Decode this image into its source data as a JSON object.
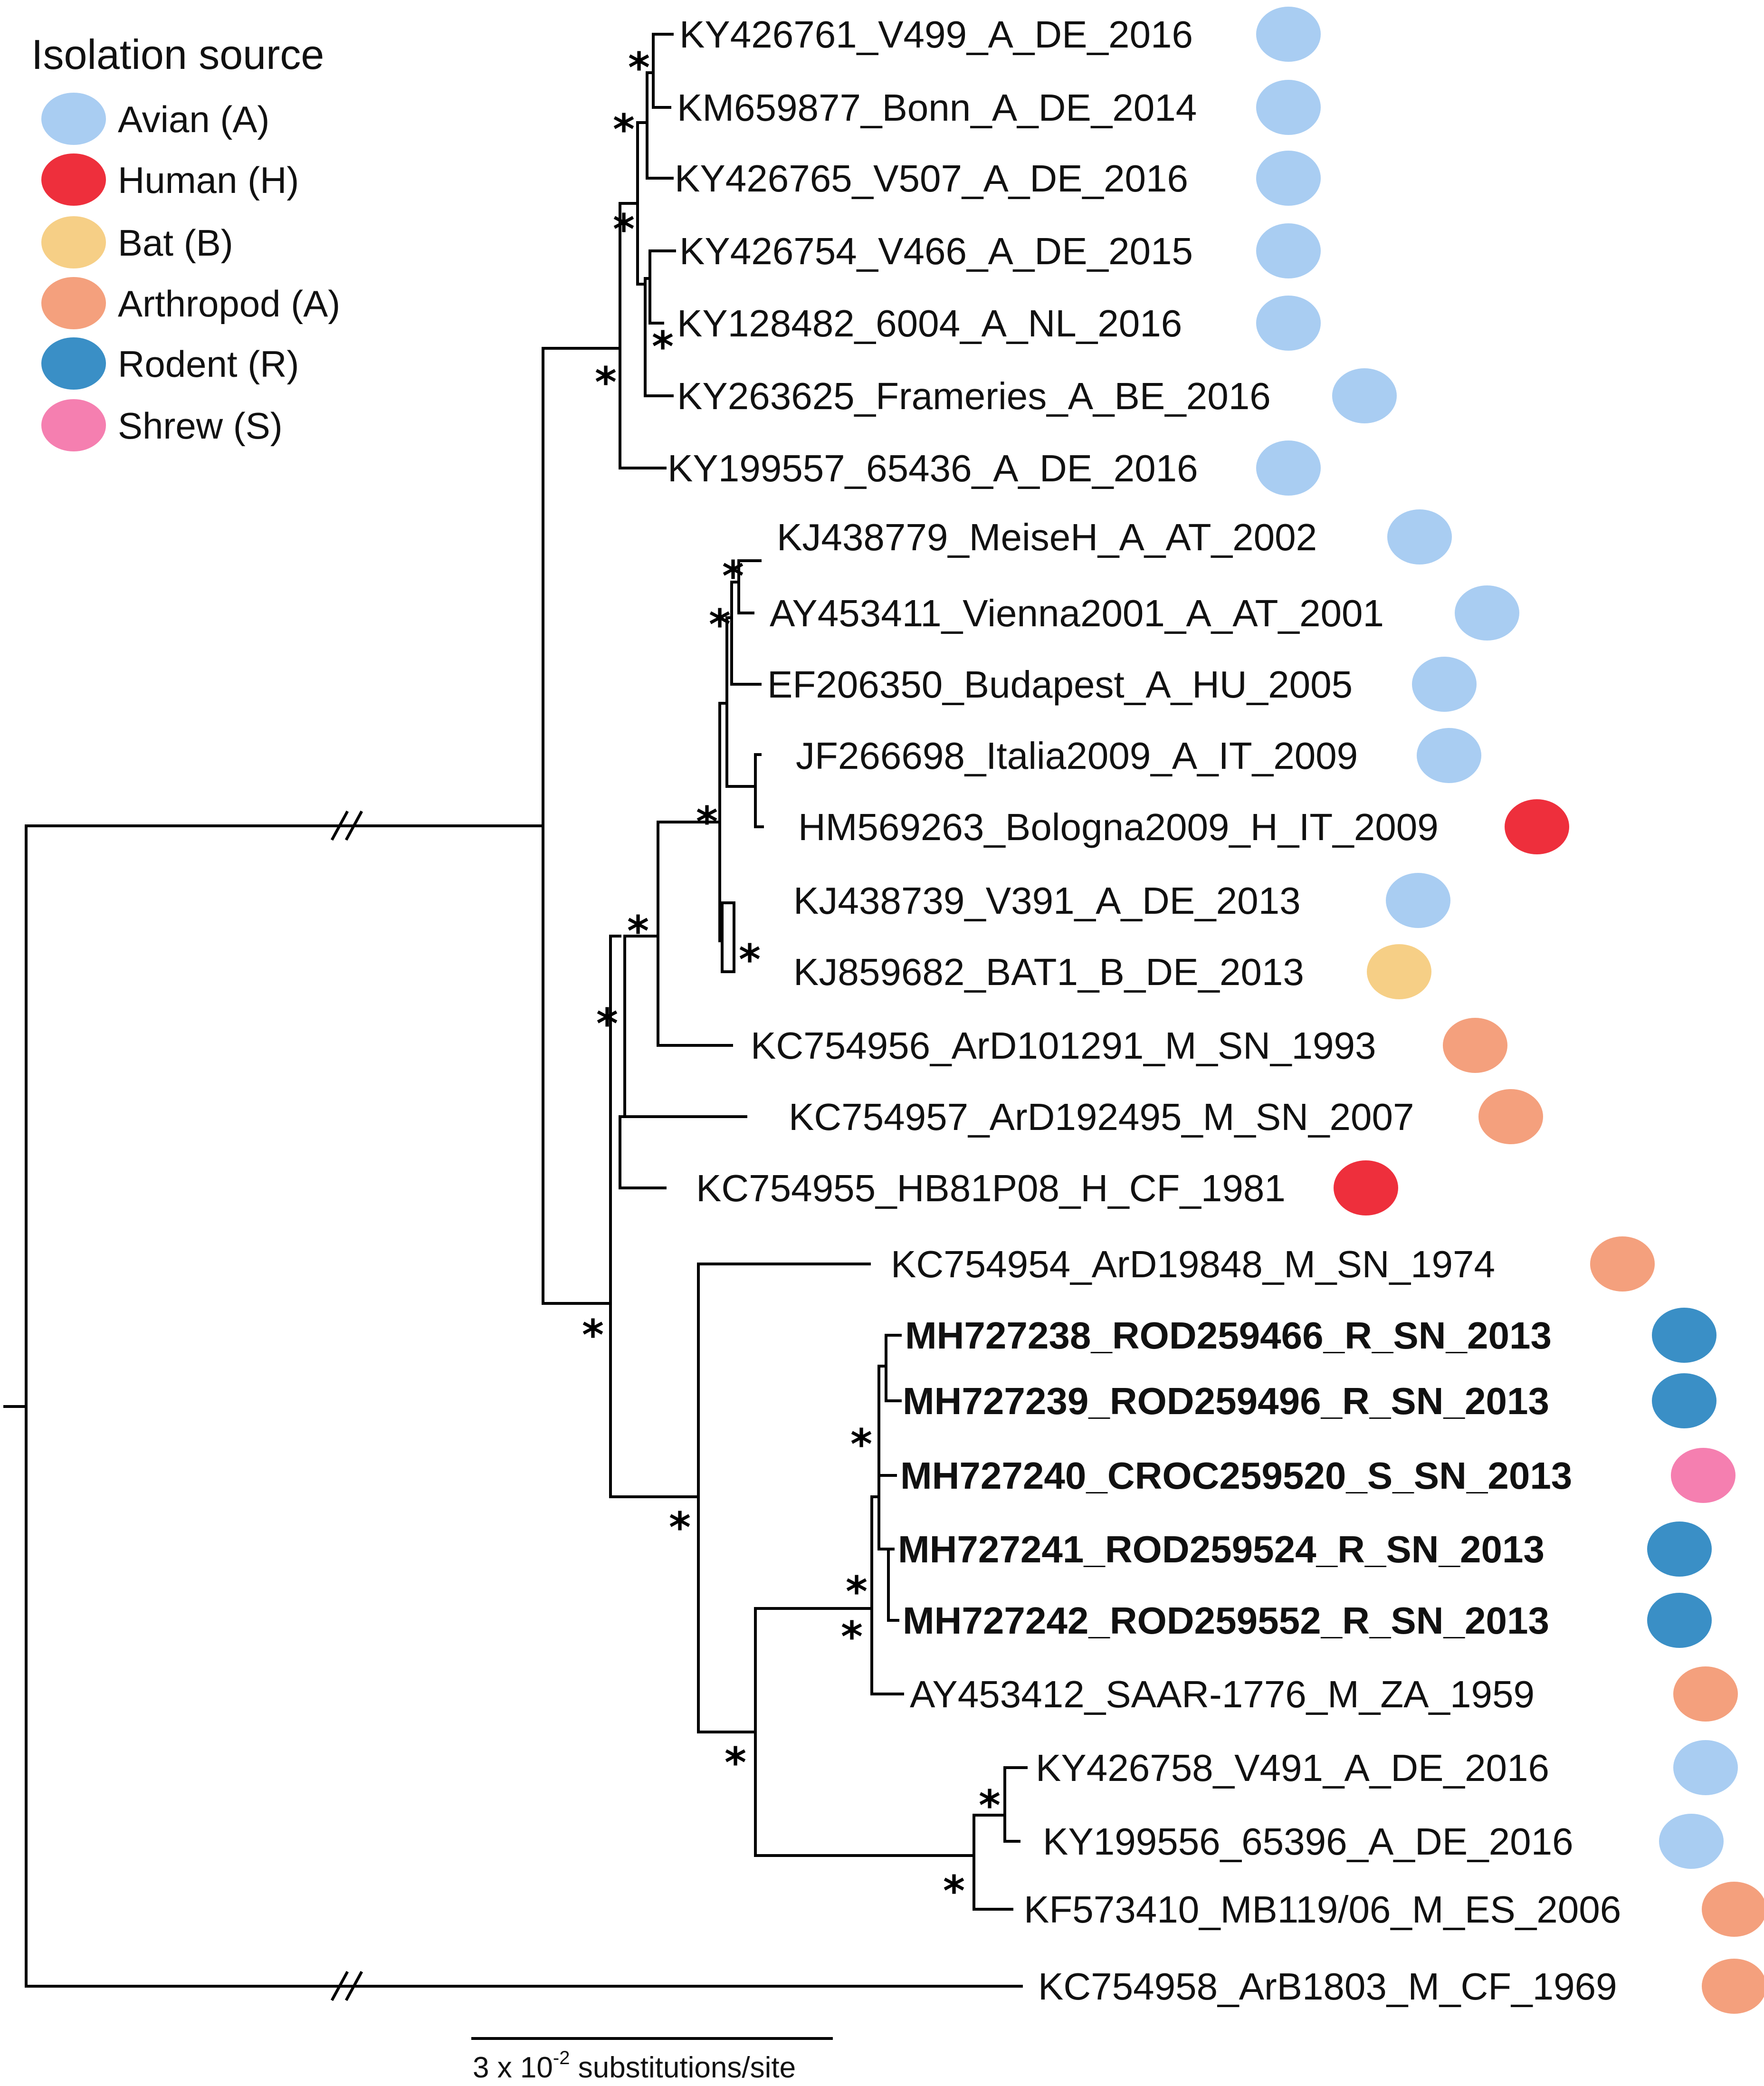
{
  "legend": {
    "title": "Isolation source",
    "items": [
      {
        "label": "Avian (A)",
        "color": "#a9cdf2"
      },
      {
        "label": "Human (H)",
        "color": "#ee2f3c"
      },
      {
        "label": "Bat (B)",
        "color": "#f6cf86"
      },
      {
        "label": "Arthropod (A)",
        "color": "#f4a07d"
      },
      {
        "label": "Rodent (R)",
        "color": "#3a8fc6"
      },
      {
        "label": "Shrew (S)",
        "color": "#f57fb0"
      }
    ]
  },
  "tips": [
    {
      "label": "KY426761_V499_A_DE_2016",
      "color": "#a9cdf2",
      "bold": false
    },
    {
      "label": "KM659877_Bonn_A_DE_2014",
      "color": "#a9cdf2",
      "bold": false
    },
    {
      "label": "KY426765_V507_A_DE_2016",
      "color": "#a9cdf2",
      "bold": false
    },
    {
      "label": "KY426754_V466_A_DE_2015",
      "color": "#a9cdf2",
      "bold": false
    },
    {
      "label": "KY128482_6004_A_NL_2016",
      "color": "#a9cdf2",
      "bold": false
    },
    {
      "label": "KY263625_Frameries_A_BE_2016",
      "color": "#a9cdf2",
      "bold": false
    },
    {
      "label": "KY199557_65436_A_DE_2016",
      "color": "#a9cdf2",
      "bold": false
    },
    {
      "label": "KJ438779_MeiseH_A_AT_2002",
      "color": "#a9cdf2",
      "bold": false
    },
    {
      "label": "AY453411_Vienna2001_A_AT_2001",
      "color": "#a9cdf2",
      "bold": false
    },
    {
      "label": "EF206350_Budapest_A_HU_2005",
      "color": "#a9cdf2",
      "bold": false
    },
    {
      "label": "JF266698_Italia2009_A_IT_2009",
      "color": "#a9cdf2",
      "bold": false
    },
    {
      "label": "HM569263_Bologna2009_H_IT_2009",
      "color": "#ee2f3c",
      "bold": false
    },
    {
      "label": "KJ438739_V391_A_DE_2013",
      "color": "#a9cdf2",
      "bold": false
    },
    {
      "label": "KJ859682_BAT1_B_DE_2013",
      "color": "#f6cf86",
      "bold": false
    },
    {
      "label": "KC754956_ArD101291_M_SN_1993",
      "color": "#f4a07d",
      "bold": false
    },
    {
      "label": "KC754957_ArD192495_M_SN_2007",
      "color": "#f4a07d",
      "bold": false
    },
    {
      "label": "KC754955_HB81P08_H_CF_1981",
      "color": "#ee2f3c",
      "bold": false
    },
    {
      "label": "KC754954_ArD19848_M_SN_1974",
      "color": "#f4a07d",
      "bold": false
    },
    {
      "label": "MH727238_ROD259466_R_SN_2013",
      "color": "#3a8fc6",
      "bold": true
    },
    {
      "label": "MH727239_ROD259496_R_SN_2013",
      "color": "#3a8fc6",
      "bold": true
    },
    {
      "label": "MH727240_CROC259520_S_SN_2013",
      "color": "#f57fb0",
      "bold": true
    },
    {
      "label": "MH727241_ROD259524_R_SN_2013",
      "color": "#3a8fc6",
      "bold": true
    },
    {
      "label": "MH727242_ROD259552_R_SN_2013",
      "color": "#3a8fc6",
      "bold": true
    },
    {
      "label": "AY453412_SAAR-1776_M_ZA_1959",
      "color": "#f4a07d",
      "bold": false
    },
    {
      "label": "KY426758_V491_A_DE_2016",
      "color": "#a9cdf2",
      "bold": false
    },
    {
      "label": "KY199556_65396_A_DE_2016",
      "color": "#a9cdf2",
      "bold": false
    },
    {
      "label": "KF573410_MB119/06_M_ES_2006",
      "color": "#f4a07d",
      "bold": false
    },
    {
      "label": "KC754958_ArB1803_M_CF_1969",
      "color": "#f4a07d",
      "bold": false
    }
  ],
  "support_symbol": "*",
  "scale_bar": {
    "label_prefix": "3 x 10",
    "exponent": "-2",
    "label_suffix": " substitutions/site"
  }
}
